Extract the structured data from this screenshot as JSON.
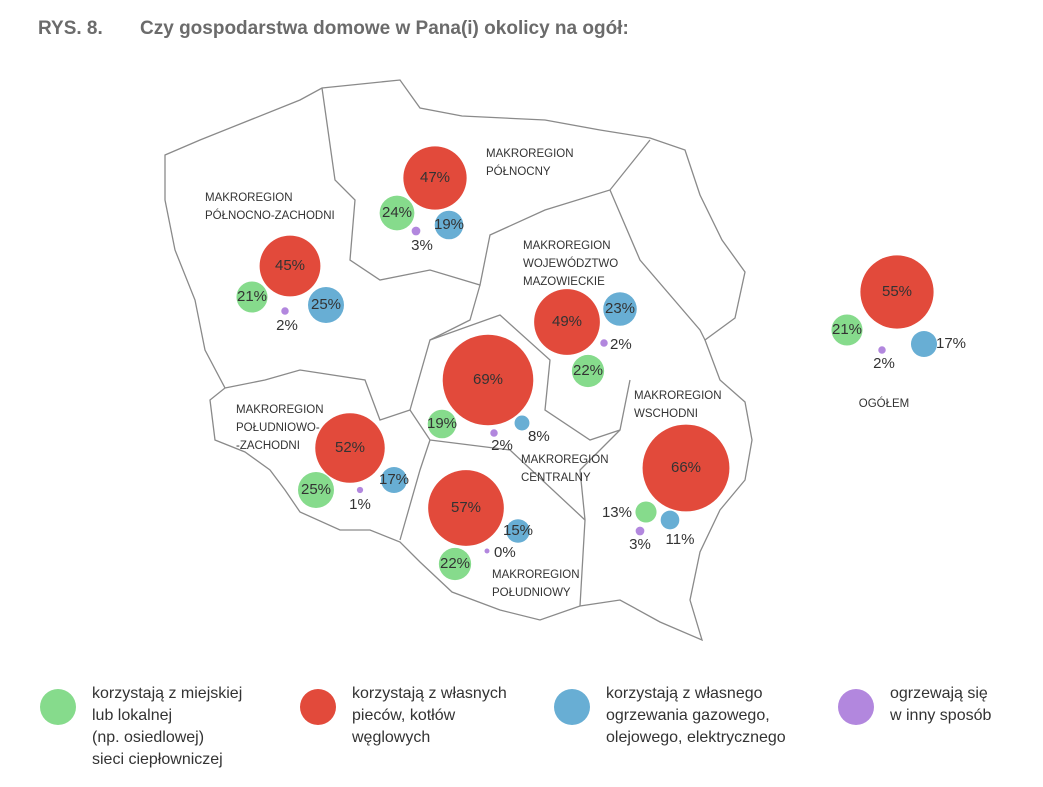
{
  "header": {
    "figure": "RYS. 8.",
    "title": "Czy gospodarstwa domowe w Pana(i) okolicy na ogół:"
  },
  "legend": [
    {
      "lines": [
        "korzystają z miejskiej",
        "lub lokalnej",
        "(np. osiedlowej)",
        "sieci ciepłowniczej"
      ],
      "color": "#86db8c"
    },
    {
      "lines": [
        "korzystają z własnych",
        "pieców, kotłów",
        "węglowych"
      ],
      "color": "#e24a3b"
    },
    {
      "lines": [
        "korzystają z własnego",
        "ogrzewania gazowego,",
        "olejowego, elektrycznego"
      ],
      "color": "#68aed4"
    },
    {
      "lines": [
        "ogrzewają się",
        "w inny sposób"
      ],
      "color": "#b287de"
    }
  ],
  "regions": [
    {
      "name": [
        "MAKROREGION",
        "PÓŁNOCNY"
      ],
      "values": [
        24,
        47,
        19,
        3
      ],
      "value_labels": [
        "24%",
        "47%",
        "19%",
        "3%"
      ]
    },
    {
      "name": [
        "MAKROREGION",
        "PÓŁNOCNO-ZACHODNI"
      ],
      "values": [
        21,
        45,
        25,
        2
      ],
      "value_labels": [
        "21%",
        "45%",
        "25%",
        "2%"
      ]
    },
    {
      "name": [
        "MAKROREGION",
        "WOJEWÓDZTWO",
        "MAZOWIECKIE"
      ],
      "values": [
        22,
        49,
        23,
        2
      ],
      "value_labels": [
        "22%",
        "49%",
        "23%",
        "2%"
      ]
    },
    {
      "name": [
        "MAKROREGION",
        "CENTRALNY"
      ],
      "values": [
        19,
        69,
        8,
        2
      ],
      "value_labels": [
        "19%",
        "69%",
        "8%",
        "2%"
      ]
    },
    {
      "name": [
        "MAKROREGION",
        "POŁUDNIOWO-",
        "-ZACHODNI"
      ],
      "values": [
        25,
        52,
        17,
        1
      ],
      "value_labels": [
        "25%",
        "52%",
        "17%",
        "1%"
      ]
    },
    {
      "name": [
        "MAKROREGION",
        "POŁUDNIOWY"
      ],
      "values": [
        22,
        57,
        15,
        0
      ],
      "value_labels": [
        "22%",
        "57%",
        "15%",
        "0%"
      ]
    },
    {
      "name": [
        "MAKROREGION",
        "WSCHODNI"
      ],
      "values": [
        13,
        66,
        11,
        3
      ],
      "value_labels": [
        "13%",
        "66%",
        "11%",
        "3%"
      ]
    },
    {
      "name": [
        "OGÓŁEM"
      ],
      "values": [
        21,
        55,
        17,
        2
      ],
      "value_labels": [
        "21%",
        "55%",
        "17%",
        "2%"
      ]
    }
  ]
}
